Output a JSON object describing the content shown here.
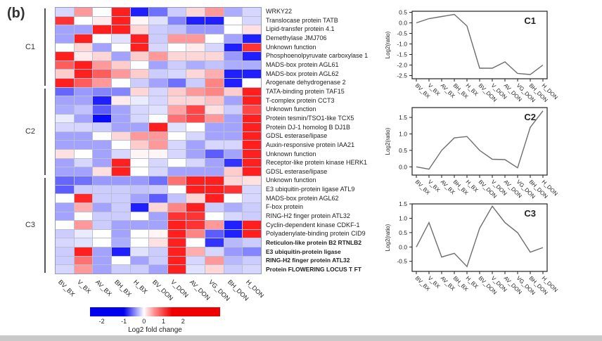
{
  "panel_label": "(b)",
  "colorbar": {
    "ticks": [
      "-2",
      "-1",
      "0",
      "1",
      "2"
    ],
    "label": "Log2 fold change"
  },
  "chart_data": [
    {
      "type": "heatmap",
      "x_categories": [
        "BV_BX",
        "V_BX",
        "AV_BX",
        "BH_BX",
        "H_BX",
        "BV_DON",
        "V_DON",
        "AV_DON",
        "VG_DON",
        "BH_DON",
        "H_DON"
      ],
      "colorscale": {
        "min": -2.5,
        "max": 2.5,
        "colors": [
          "#0000ff",
          "#ffffff",
          "#ff0000"
        ]
      },
      "legend": {
        "ticks": [
          -2,
          -1,
          0,
          1,
          2
        ],
        "label": "Log2 fold change"
      },
      "clusters": [
        {
          "label": "C1",
          "start": 0,
          "end": 8
        },
        {
          "label": "C2",
          "start": 9,
          "end": 18
        },
        {
          "label": "C3",
          "start": 19,
          "end": 29
        }
      ],
      "rows": [
        {
          "label": "WRKY22",
          "cluster": "C1",
          "values": [
            -0.4,
            1.0,
            0.0,
            2.2,
            -2.2,
            -1.4,
            -0.5,
            0.4,
            1.0,
            -0.8,
            -0.4
          ]
        },
        {
          "label": "Translocase protein TATB",
          "cluster": "C1",
          "values": [
            2.0,
            0.0,
            0.2,
            2.2,
            0.1,
            -0.3,
            -1.2,
            -2.2,
            -2.2,
            0.0,
            -0.4
          ]
        },
        {
          "label": "Lipid-transfer protein 4.1",
          "cluster": "C1",
          "values": [
            -0.9,
            -0.9,
            2.2,
            2.2,
            0.4,
            -0.5,
            -0.6,
            -1.0,
            -1.0,
            0.0,
            0.3
          ]
        },
        {
          "label": "Demethylase JMJ706",
          "cluster": "C1",
          "values": [
            -0.9,
            2.2,
            0.0,
            -0.3,
            2.2,
            -0.5,
            1.0,
            1.0,
            0.0,
            -0.9,
            -2.2
          ]
        },
        {
          "label": "Unknown function",
          "cluster": "C1",
          "values": [
            0.0,
            0.4,
            -0.9,
            0.0,
            2.2,
            -0.4,
            0.0,
            0.2,
            -0.4,
            -2.2,
            2.0
          ]
        },
        {
          "label": "Phosphoenolpyruvate carboxylase 1",
          "cluster": "C1",
          "values": [
            2.2,
            0.2,
            0.4,
            -0.9,
            0.5,
            1.0,
            0.4,
            0.4,
            0.4,
            -1.0,
            -2.2
          ]
        },
        {
          "label": "MADS-box protein AGL61",
          "cluster": "C1",
          "values": [
            1.6,
            2.2,
            1.0,
            0.5,
            0.0,
            -0.9,
            -0.5,
            -0.8,
            -0.6,
            -0.8,
            -0.8
          ]
        },
        {
          "label": "MADS-box protein AGL62",
          "cluster": "C1",
          "values": [
            0.5,
            2.2,
            1.6,
            1.0,
            0.5,
            -0.5,
            -0.4,
            0.4,
            0.8,
            -2.2,
            -2.2
          ]
        },
        {
          "label": "Arogenate dehydrogenase 2",
          "cluster": "C1",
          "values": [
            2.2,
            1.6,
            1.0,
            0.0,
            -0.5,
            -0.9,
            -1.4,
            -0.5,
            1.2,
            -2.2,
            0.0
          ]
        },
        {
          "label": "TATA-binding protein TAF15",
          "cluster": "C2",
          "values": [
            -1.5,
            -1.0,
            -1.2,
            -1.2,
            0.4,
            -0.4,
            0.5,
            1.0,
            1.2,
            0.5,
            2.2
          ]
        },
        {
          "label": "T-complex protein CCT3",
          "cluster": "C2",
          "values": [
            -0.9,
            -0.9,
            -2.2,
            0.2,
            -0.2,
            -0.4,
            0.4,
            0.4,
            0.6,
            -0.9,
            2.2
          ]
        },
        {
          "label": "Unknown function",
          "cluster": "C2",
          "values": [
            -0.8,
            -0.6,
            -1.6,
            -0.9,
            -0.4,
            -0.3,
            0.9,
            1.8,
            0.3,
            -0.5,
            1.8
          ]
        },
        {
          "label": "Protein tesmin/TSO1-like TCX5",
          "cluster": "C2",
          "values": [
            -0.2,
            -0.9,
            -2.4,
            -0.9,
            -0.4,
            0.0,
            1.4,
            1.8,
            1.0,
            -0.9,
            2.2
          ]
        },
        {
          "label": "Protein DJ-1 homolog B DJ1B",
          "cluster": "C2",
          "values": [
            -0.4,
            -0.4,
            -0.5,
            -0.9,
            -0.9,
            2.2,
            -0.3,
            0.0,
            -0.9,
            -0.9,
            2.2
          ]
        },
        {
          "label": "GDSL esterase/lipase",
          "cluster": "C2",
          "values": [
            -0.9,
            -0.9,
            0.0,
            0.4,
            1.0,
            1.0,
            0.0,
            -0.4,
            -0.9,
            -0.9,
            2.2
          ]
        },
        {
          "label": "Auxin-responsive protein IAA21",
          "cluster": "C2",
          "values": [
            -0.9,
            -0.9,
            -0.9,
            0.0,
            0.5,
            1.0,
            -0.4,
            -0.9,
            -0.4,
            -0.4,
            2.2
          ]
        },
        {
          "label": "Unknown function",
          "cluster": "C2",
          "values": [
            0.3,
            0.0,
            -0.9,
            -0.4,
            0.1,
            0.1,
            -0.4,
            -0.9,
            -1.6,
            -0.9,
            2.2
          ]
        },
        {
          "label": "Receptor-like protein kinase HERK1",
          "cluster": "C2",
          "values": [
            -0.9,
            -0.4,
            -0.9,
            2.2,
            0.0,
            -0.4,
            0.0,
            -0.4,
            -0.9,
            -2.0,
            2.2
          ]
        },
        {
          "label": "GDSL esterase/lipase",
          "cluster": "C2",
          "values": [
            -0.9,
            -0.9,
            0.3,
            2.2,
            0.0,
            -0.4,
            -0.9,
            -0.9,
            -0.9,
            0.5,
            2.2
          ]
        },
        {
          "label": "Unknown function",
          "cluster": "C3",
          "values": [
            -1.5,
            -1.4,
            -1.0,
            -1.0,
            -1.0,
            -1.4,
            1.4,
            2.2,
            2.2,
            0.4,
            0.3
          ]
        },
        {
          "label": "E3 ubiquitin-protein ligase ATL9",
          "cluster": "C3",
          "values": [
            -1.6,
            -0.5,
            -0.5,
            -0.5,
            -0.6,
            -0.5,
            0.0,
            2.2,
            2.2,
            2.0,
            -0.4
          ]
        },
        {
          "label": "MADS-box protein AGL62",
          "cluster": "C3",
          "values": [
            0.0,
            2.1,
            -0.5,
            -0.5,
            -0.9,
            -1.6,
            -0.6,
            0.4,
            2.2,
            0.0,
            -0.4
          ]
        },
        {
          "label": "F-box protein",
          "cluster": "C3",
          "values": [
            -0.9,
            0.8,
            -0.9,
            -0.5,
            -2.2,
            0.4,
            1.2,
            2.2,
            -0.5,
            -0.8,
            -0.5
          ]
        },
        {
          "label": "RING-H2 finger protein ATL32",
          "cluster": "C3",
          "values": [
            -0.9,
            0.0,
            -0.5,
            -0.5,
            0.0,
            -0.9,
            2.0,
            2.0,
            0.0,
            -0.4,
            -0.5
          ]
        },
        {
          "label": "Cyclin-dependent kinase CDKF-1",
          "cluster": "C3",
          "values": [
            0.0,
            1.0,
            -0.5,
            -0.9,
            -0.9,
            -0.9,
            2.2,
            2.0,
            1.0,
            -2.2,
            2.2
          ]
        },
        {
          "label": "Polyadenylate-binding protein CID9",
          "cluster": "C3",
          "values": [
            -0.5,
            -0.2,
            0.0,
            -0.9,
            0.0,
            0.1,
            2.2,
            1.2,
            -1.6,
            -2.2,
            2.2
          ]
        },
        {
          "label": "Reticulon-like protein B2 RTNLB2",
          "cluster": "C3",
          "values": [
            -0.4,
            -0.3,
            0.0,
            -0.8,
            0.0,
            0.3,
            2.2,
            0.0,
            -2.0,
            -0.7,
            -0.5
          ]
        },
        {
          "label": "E3 ubiquitin-protein ligase",
          "cluster": "C3",
          "values": [
            -0.5,
            2.2,
            -0.9,
            -2.2,
            -0.3,
            -0.5,
            2.2,
            0.8,
            -0.4,
            -1.0,
            -1.2
          ]
        },
        {
          "label": "RING-H2 finger protein ATL32",
          "cluster": "C3",
          "values": [
            -0.5,
            1.4,
            -0.9,
            0.0,
            -0.9,
            -0.5,
            2.2,
            -0.4,
            1.0,
            -0.7,
            -0.5
          ]
        },
        {
          "label": "Protein FLOWERING LOCUS T FT",
          "cluster": "C3",
          "values": [
            -0.4,
            1.0,
            -0.9,
            -0.5,
            -0.5,
            -0.9,
            2.2,
            -0.3,
            0.4,
            -0.5,
            -0.4
          ]
        }
      ]
    },
    {
      "type": "line",
      "title": "C1",
      "ylabel": "Log2(ratio)",
      "x": [
        "BV_BX",
        "V_BX",
        "AV_BX",
        "BH_BX",
        "H_BX",
        "BV_DON",
        "V_DON",
        "AV_DON",
        "VG_DON",
        "BH_DON",
        "H_DON"
      ],
      "yticks": [
        "0.5",
        "0.0",
        "-0.5",
        "-1.0",
        "-1.5",
        "-2.0",
        "-2.5"
      ],
      "ylim": [
        -2.65,
        0.55
      ],
      "values": [
        0.0,
        0.2,
        0.3,
        0.4,
        -0.15,
        -2.15,
        -2.15,
        -1.85,
        -2.4,
        -2.45,
        -2.0
      ],
      "legend_position": "none",
      "grid": false
    },
    {
      "type": "line",
      "title": "C2",
      "ylabel": "Log2(ratio)",
      "x": [
        "BV_BX",
        "V_BX",
        "AV_BX",
        "BH_BX",
        "H_BX",
        "BV_DON",
        "V_DON",
        "AV_DON",
        "VG_DON",
        "BH_DON",
        "H_DON"
      ],
      "yticks": [
        "1.5",
        "1.0",
        "0.5",
        "0.0"
      ],
      "ylim": [
        -0.25,
        1.8
      ],
      "values": [
        0.0,
        -0.07,
        0.5,
        0.88,
        0.92,
        0.5,
        0.23,
        0.22,
        -0.03,
        1.2,
        1.7
      ],
      "legend_position": "none",
      "grid": false
    },
    {
      "type": "line",
      "title": "C3",
      "ylabel": "Log2(ratio)",
      "x": [
        "BV_BX",
        "V_BX",
        "AV_BX",
        "BH_BX",
        "H_BX",
        "BV_DON",
        "V_DON",
        "AV_DON",
        "VG_DON",
        "BH_DON",
        "H_DON"
      ],
      "yticks": [
        "1.5",
        "1.0",
        "0.5",
        "0.0",
        "-0.5"
      ],
      "ylim": [
        -0.85,
        1.5
      ],
      "values": [
        0.0,
        0.85,
        -0.35,
        -0.22,
        -0.68,
        0.65,
        1.42,
        0.85,
        0.5,
        -0.18,
        -0.02
      ],
      "legend_position": "none",
      "grid": false
    }
  ]
}
